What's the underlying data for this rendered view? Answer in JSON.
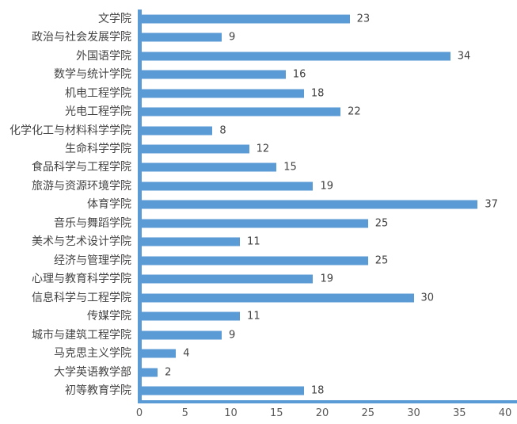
{
  "chart_data": {
    "type": "bar",
    "orientation": "horizontal",
    "title": "",
    "xlabel": "",
    "ylabel": "",
    "categories": [
      "文学院",
      "政治与社会发展学院",
      "外国语学院",
      "数学与统计学院",
      "机电工程学院",
      "光电工程学院",
      "化学化工与材料科学学院",
      "生命科学学院",
      "食品科学与工程学院",
      "旅游与资源环境学院",
      "体育学院",
      "音乐与舞蹈学院",
      "美术与艺术设计学院",
      "经济与管理学院",
      "心理与教育科学学院",
      "信息科学与工程学院",
      "传媒学院",
      "城市与建筑工程学院",
      "马克思主义学院",
      "大学英语教学部",
      "初等教育学院"
    ],
    "values": [
      23,
      9,
      34,
      16,
      18,
      22,
      8,
      12,
      15,
      19,
      37,
      25,
      11,
      25,
      19,
      30,
      11,
      9,
      4,
      2,
      18
    ],
    "xlim": [
      0,
      40
    ],
    "x_ticks": [
      0,
      5,
      10,
      15,
      20,
      25,
      30,
      35,
      40
    ],
    "grid": false,
    "legend": null,
    "data_labels_shown": true,
    "colors": {
      "bar": "#5B9BD5",
      "axis_line": "#5B9BD5",
      "category_label": "#444444",
      "value_label": "#404040",
      "tick_label": "#595959",
      "background": "#ffffff"
    }
  }
}
